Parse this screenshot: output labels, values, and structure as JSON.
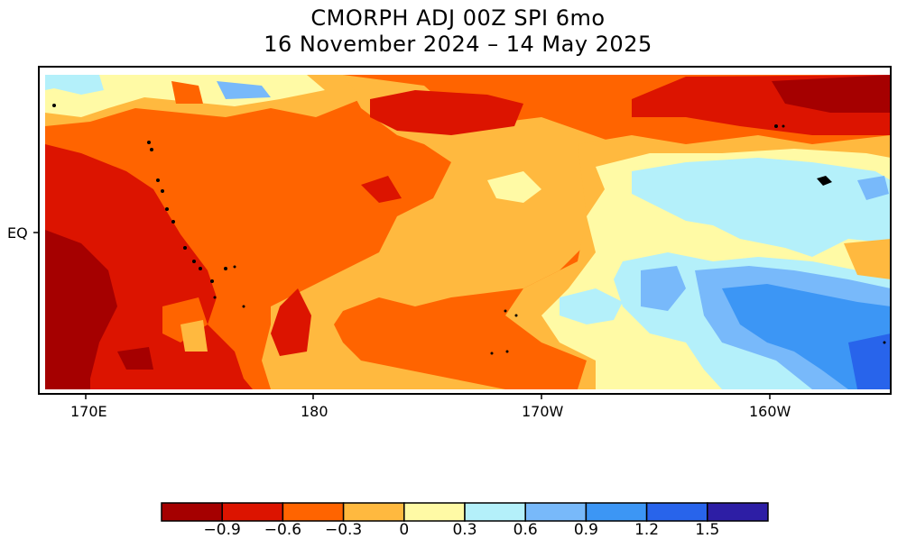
{
  "title": {
    "line1": "CMORPH ADJ 00Z SPI 6mo",
    "line2": "16 November 2024 – 14 May 2025"
  },
  "axes": {
    "x_ticks": [
      "170E",
      "180",
      "170W",
      "160W"
    ],
    "y_ticks": [
      "EQ"
    ]
  },
  "legend": {
    "colors": [
      "#a50000",
      "#dc1400",
      "#ff6400",
      "#ffb93f",
      "#fffaa5",
      "#b4f0fa",
      "#78b9fa",
      "#3c96f5",
      "#2864eb",
      "#2d1ea5"
    ],
    "labels": [
      "−0.9",
      "−0.6",
      "−0.3",
      "0",
      "0.3",
      "0.6",
      "0.9",
      "1.2",
      "1.5"
    ]
  }
}
